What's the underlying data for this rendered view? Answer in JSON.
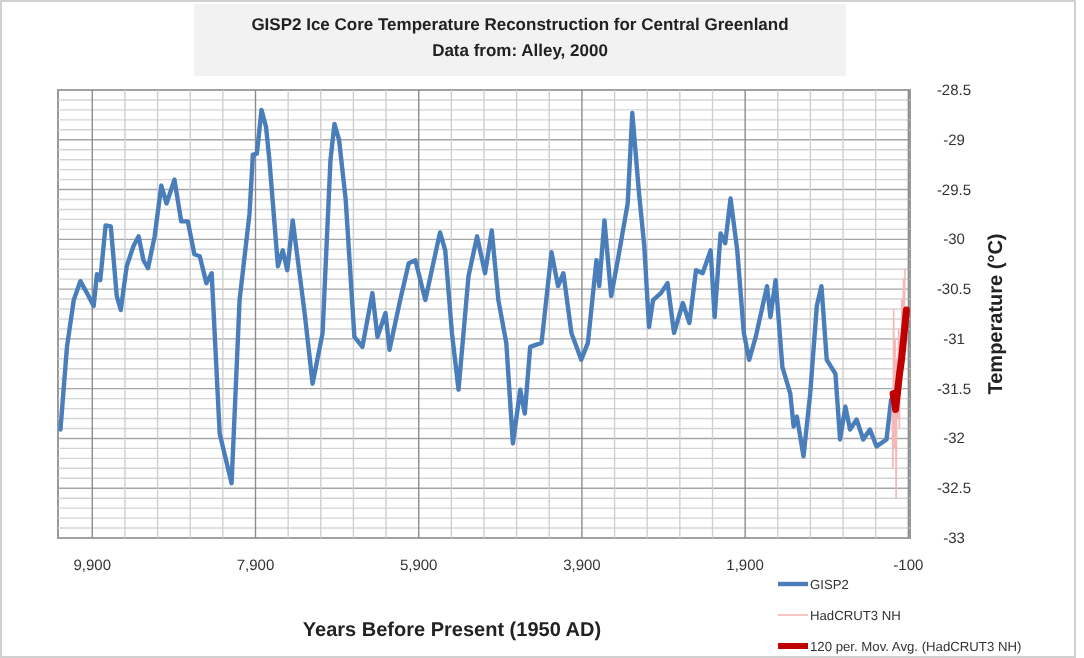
{
  "chart_data": {
    "type": "line",
    "title": "GISP2 Ice Core Temperature Reconstruction for Central Greenland",
    "subtitle": "Data from: Alley, 2000",
    "xlabel": "Years Before Present (1950 AD)",
    "ylabel": "Temperature (°C)",
    "xlim": [
      10320,
      -120
    ],
    "ylim": [
      -33,
      -28.5
    ],
    "xticks": [
      {
        "value": 9900,
        "label": "9,900"
      },
      {
        "value": 9500,
        "label": null
      },
      {
        "value": 9100,
        "label": null
      },
      {
        "value": 8700,
        "label": null
      },
      {
        "value": 8300,
        "label": null
      },
      {
        "value": 7900,
        "label": "7,900"
      },
      {
        "value": 7500,
        "label": null
      },
      {
        "value": 7100,
        "label": null
      },
      {
        "value": 6700,
        "label": null
      },
      {
        "value": 6300,
        "label": null
      },
      {
        "value": 5900,
        "label": "5,900"
      },
      {
        "value": 5500,
        "label": null
      },
      {
        "value": 5100,
        "label": null
      },
      {
        "value": 4700,
        "label": null
      },
      {
        "value": 4300,
        "label": null
      },
      {
        "value": 3900,
        "label": "3,900"
      },
      {
        "value": 3500,
        "label": null
      },
      {
        "value": 3100,
        "label": null
      },
      {
        "value": 2700,
        "label": null
      },
      {
        "value": 2300,
        "label": null
      },
      {
        "value": 1900,
        "label": "1,900"
      },
      {
        "value": 1500,
        "label": null
      },
      {
        "value": 1100,
        "label": null
      },
      {
        "value": 700,
        "label": null
      },
      {
        "value": 300,
        "label": null
      },
      -100
    ],
    "yticks": [
      -33,
      {
        "value": -32.9,
        "label": null
      },
      {
        "value": -32.8,
        "label": null
      },
      {
        "value": -32.7,
        "label": null
      },
      {
        "value": -32.6,
        "label": null
      },
      -32.5,
      {
        "value": -32.4,
        "label": null
      },
      {
        "value": -32.3,
        "label": null
      },
      {
        "value": -32.2,
        "label": null
      },
      {
        "value": -32.1,
        "label": null
      },
      -32,
      {
        "value": -31.9,
        "label": null
      },
      {
        "value": -31.8,
        "label": null
      },
      {
        "value": -31.7,
        "label": null
      },
      {
        "value": -31.6,
        "label": null
      },
      -31.5,
      {
        "value": -31.4,
        "label": null
      },
      {
        "value": -31.3,
        "label": null
      },
      {
        "value": -31.2,
        "label": null
      },
      {
        "value": -31.1,
        "label": null
      },
      -31,
      {
        "value": -30.9,
        "label": null
      },
      {
        "value": -30.8,
        "label": null
      },
      {
        "value": -30.7,
        "label": null
      },
      {
        "value": -30.6,
        "label": null
      },
      -30.5,
      {
        "value": -30.4,
        "label": null
      },
      {
        "value": -30.3,
        "label": null
      },
      {
        "value": -30.2,
        "label": null
      },
      {
        "value": -30.1,
        "label": null
      },
      -30,
      {
        "value": -29.9,
        "label": null
      },
      {
        "value": -29.8,
        "label": null
      },
      {
        "value": -29.7,
        "label": null
      },
      {
        "value": -29.6,
        "label": null
      },
      -29.5,
      {
        "value": -29.4,
        "label": null
      },
      {
        "value": -29.3,
        "label": null
      },
      {
        "value": -29.2,
        "label": null
      },
      {
        "value": -29.1,
        "label": null
      },
      -29,
      {
        "value": -28.9,
        "label": null
      },
      {
        "value": -28.8,
        "label": null
      },
      {
        "value": -28.7,
        "label": null
      },
      {
        "value": -28.6,
        "label": null
      },
      -28.5
    ],
    "grid": true,
    "legend": "bottom right",
    "series": [
      {
        "name": "GISP2",
        "color": "#4a7ebb",
        "x": [
          10290,
          10210,
          10127,
          10046,
          9965,
          9883,
          9843,
          9802,
          9737,
          9673,
          9600,
          9551,
          9478,
          9396,
          9332,
          9273,
          9217,
          9136,
          9054,
          8990,
          8893,
          8810,
          8729,
          8649,
          8583,
          8502,
          8437,
          8339,
          8193,
          8095,
          7973,
          7932,
          7883,
          7827,
          7771,
          7730,
          7625,
          7566,
          7510,
          7444,
          7298,
          7200,
          7078,
          6981,
          6932,
          6876,
          6795,
          6688,
          6590,
          6468,
          6405,
          6307,
          6258,
          6127,
          6022,
          5941,
          5819,
          5639,
          5575,
          5493,
          5412,
          5290,
          5185,
          5087,
          5005,
          4924,
          4827,
          4746,
          4656,
          4600,
          4534,
          4395,
          4273,
          4193,
          4127,
          4029,
          3908,
          3827,
          3722,
          3688,
          3624,
          3542,
          3461,
          3339,
          3283,
          3200,
          3136,
          3078,
          3029,
          2932,
          2851,
          2771,
          2664,
          2583,
          2502,
          2421,
          2323,
          2274,
          2201,
          2144,
          2079,
          1997,
          1916,
          1851,
          1770,
          1632,
          1590,
          1527,
          1444,
          1347,
          1306,
          1266,
          1185,
          1103,
          1022,
          965,
          900,
          794,
          737,
          672,
          615,
          534,
          453,
          371,
          290,
          168,
          111
        ],
        "values": [
          -31.91,
          -31.08,
          -30.61,
          -30.42,
          -30.54,
          -30.67,
          -30.35,
          -30.41,
          -29.86,
          -29.87,
          -30.57,
          -30.71,
          -30.27,
          -30.07,
          -29.97,
          -30.21,
          -30.29,
          -29.97,
          -29.46,
          -29.64,
          -29.4,
          -29.82,
          -29.82,
          -30.15,
          -30.17,
          -30.44,
          -30.34,
          -31.95,
          -32.45,
          -30.61,
          -29.74,
          -29.15,
          -29.14,
          -28.7,
          -28.87,
          -29.2,
          -30.27,
          -30.11,
          -30.31,
          -29.81,
          -30.74,
          -31.45,
          -30.94,
          -29.2,
          -28.84,
          -29.0,
          -29.6,
          -30.98,
          -31.08,
          -30.54,
          -30.98,
          -30.74,
          -31.11,
          -30.61,
          -30.24,
          -30.21,
          -30.61,
          -29.93,
          -30.11,
          -30.94,
          -31.51,
          -30.37,
          -29.97,
          -30.34,
          -29.91,
          -30.61,
          -31.04,
          -32.05,
          -31.51,
          -31.75,
          -31.08,
          -31.04,
          -30.13,
          -30.47,
          -30.34,
          -30.94,
          -31.21,
          -31.04,
          -30.21,
          -30.47,
          -29.81,
          -30.57,
          -30.21,
          -29.64,
          -28.73,
          -29.54,
          -30.07,
          -30.88,
          -30.61,
          -30.54,
          -30.44,
          -30.94,
          -30.64,
          -30.84,
          -30.31,
          -30.34,
          -30.11,
          -30.78,
          -29.94,
          -30.04,
          -29.59,
          -30.11,
          -30.94,
          -31.21,
          -30.98,
          -30.47,
          -30.78,
          -30.41,
          -31.28,
          -31.55,
          -31.88,
          -31.78,
          -32.18,
          -31.55,
          -30.67,
          -30.47,
          -31.21,
          -31.35,
          -32.01,
          -31.68,
          -31.91,
          -31.81,
          -32.01,
          -31.91,
          -32.08,
          -32.01,
          -31.61
        ]
      },
      {
        "name": "HadCRUT3  NH",
        "color": "#f4b8b8",
        "x": [
          100,
          90,
          80,
          70,
          60,
          50,
          40,
          30,
          20,
          10,
          0,
          -10,
          -20,
          -30,
          -40,
          -50,
          -59
        ],
        "values": [
          -31.6,
          -32.3,
          -30.7,
          -32.1,
          -31.0,
          -32.6,
          -31.2,
          -31.8,
          -30.9,
          -31.9,
          -31.0,
          -31.5,
          -30.6,
          -31.2,
          -30.4,
          -30.8,
          -30.3
        ]
      },
      {
        "name": "120 per. Mov. Avg. (HadCRUT3  NH)",
        "color": "#c00000",
        "x": [
          87,
          57,
          8,
          -16,
          -76
        ],
        "values": [
          -31.55,
          -31.71,
          -31.35,
          -31.21,
          -30.71
        ]
      }
    ]
  }
}
